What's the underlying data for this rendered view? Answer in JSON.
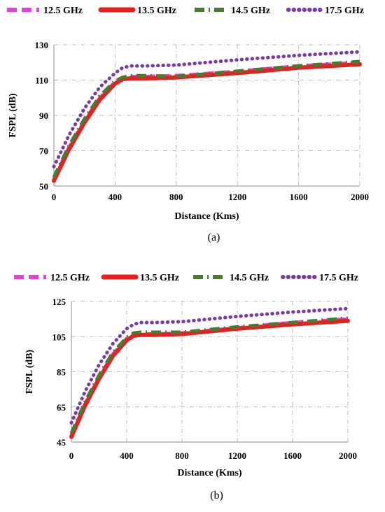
{
  "colors": {
    "s12_5": "#e83fd8",
    "s13_5": "#ee1c1c",
    "s14_5": "#4a7a32",
    "s17_5": "#7a3aa8",
    "grid": "#bfbfbf",
    "axis": "#8c8c8c"
  },
  "chart_data": [
    {
      "type": "line",
      "caption": "(a)",
      "xlabel": "Distance (Kms)",
      "ylabel": "FSPL (dB)",
      "xlim": [
        0,
        2000
      ],
      "ylim": [
        50,
        130
      ],
      "xticks": [
        "0",
        "400",
        "800",
        "1200",
        "1600",
        "2000"
      ],
      "yticks": [
        "50",
        "70",
        "90",
        "110",
        "130"
      ],
      "grid": "dash-dot",
      "legend_position": "top",
      "series": [
        {
          "name": "12.5 GHz",
          "style": "dashed",
          "x": [
            0,
            100,
            200,
            300,
            400,
            450,
            500,
            600,
            800,
            1200,
            1600,
            2000
          ],
          "values": [
            54,
            72,
            87,
            100,
            109,
            111.5,
            112,
            112,
            112.5,
            115,
            118,
            120
          ]
        },
        {
          "name": "13.5 GHz",
          "style": "solid",
          "x": [
            0,
            100,
            200,
            300,
            400,
            450,
            500,
            600,
            800,
            1200,
            1600,
            2000
          ],
          "values": [
            53,
            71,
            86,
            99,
            108,
            110.5,
            111,
            111,
            111.5,
            114,
            117,
            119
          ]
        },
        {
          "name": "14.5 GHz",
          "style": "dash-dot",
          "x": [
            0,
            100,
            200,
            300,
            400,
            450,
            500,
            600,
            800,
            1200,
            1600,
            2000
          ],
          "values": [
            55,
            73,
            88,
            101,
            109.5,
            111.5,
            112.5,
            112.5,
            112,
            115,
            118,
            120.5
          ]
        },
        {
          "name": "17.5 GHz",
          "style": "dotted",
          "x": [
            0,
            100,
            200,
            300,
            400,
            450,
            500,
            600,
            800,
            1200,
            1600,
            2000
          ],
          "values": [
            61,
            79,
            94,
            106,
            114,
            117,
            118,
            118,
            118.5,
            121.5,
            124,
            126
          ]
        }
      ]
    },
    {
      "type": "line",
      "caption": "(b)",
      "xlabel": "Distance (Kms)",
      "ylabel": "FSPL (dB)",
      "xlim": [
        0,
        2000
      ],
      "ylim": [
        45,
        125
      ],
      "xticks": [
        "0",
        "400",
        "800",
        "1200",
        "1600",
        "2000"
      ],
      "yticks": [
        "45",
        "65",
        "85",
        "105",
        "125"
      ],
      "grid": "dash-dot",
      "legend_position": "top",
      "series": [
        {
          "name": "12.5 GHz",
          "style": "dashed",
          "x": [
            0,
            100,
            200,
            300,
            400,
            450,
            500,
            600,
            800,
            1200,
            1600,
            2000
          ],
          "values": [
            49,
            67,
            82,
            95,
            104,
            106,
            106.5,
            106.5,
            107,
            110,
            113,
            115
          ]
        },
        {
          "name": "13.5 GHz",
          "style": "solid",
          "x": [
            0,
            100,
            200,
            300,
            400,
            450,
            500,
            600,
            800,
            1200,
            1600,
            2000
          ],
          "values": [
            48,
            66,
            81,
            94,
            103,
            105.5,
            106,
            106,
            106.5,
            109.5,
            112,
            114
          ]
        },
        {
          "name": "14.5 GHz",
          "style": "dash-dot",
          "x": [
            0,
            100,
            200,
            300,
            400,
            450,
            500,
            600,
            800,
            1200,
            1600,
            2000
          ],
          "values": [
            50,
            68,
            83,
            96,
            104.5,
            107,
            107.5,
            107.5,
            107.5,
            110.5,
            113,
            115.5
          ]
        },
        {
          "name": "17.5 GHz",
          "style": "dotted",
          "x": [
            0,
            100,
            200,
            300,
            400,
            450,
            500,
            600,
            800,
            1200,
            1600,
            2000
          ],
          "values": [
            56,
            74,
            89,
            101,
            109.5,
            112,
            113,
            113,
            113.5,
            116.5,
            119,
            121
          ]
        }
      ]
    }
  ]
}
